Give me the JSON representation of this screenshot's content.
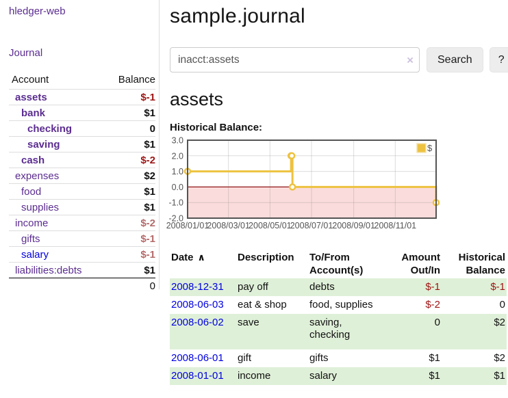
{
  "app": {
    "brand": "hledger-web",
    "nav_journal": "Journal"
  },
  "sidebar": {
    "table_headers": {
      "account": "Account",
      "balance": "Balance"
    },
    "accounts": [
      {
        "name": "assets",
        "balance": "$-1",
        "level": 1,
        "bold": true,
        "balance_class": "neg-strong",
        "link": "purple"
      },
      {
        "name": "bank",
        "balance": "$1",
        "level": 2,
        "bold": true,
        "balance_class": "",
        "link": "purple"
      },
      {
        "name": "checking",
        "balance": "0",
        "level": 3,
        "bold": true,
        "balance_class": "",
        "link": "purple"
      },
      {
        "name": "saving",
        "balance": "$1",
        "level": 3,
        "bold": true,
        "balance_class": "",
        "link": "purple"
      },
      {
        "name": "cash",
        "balance": "$-2",
        "level": 2,
        "bold": true,
        "balance_class": "neg-strong",
        "link": "purple"
      },
      {
        "name": "expenses",
        "balance": "$2",
        "level": 1,
        "bold": false,
        "balance_class": "",
        "link": "purple"
      },
      {
        "name": "food",
        "balance": "$1",
        "level": 2,
        "bold": false,
        "balance_class": "",
        "link": "purple"
      },
      {
        "name": "supplies",
        "balance": "$1",
        "level": 2,
        "bold": false,
        "balance_class": "",
        "link": "purple"
      },
      {
        "name": "income",
        "balance": "$-2",
        "level": 1,
        "bold": false,
        "balance_class": "neg-muted",
        "link": "purple"
      },
      {
        "name": "gifts",
        "balance": "$-1",
        "level": 2,
        "bold": false,
        "balance_class": "neg-muted",
        "link": "purple"
      },
      {
        "name": "salary",
        "balance": "$-1",
        "level": 2,
        "bold": false,
        "balance_class": "neg-muted",
        "link": "blue"
      },
      {
        "name": "liabilities:debts",
        "balance": "$1",
        "level": 1,
        "bold": false,
        "balance_class": "",
        "link": "purple"
      }
    ],
    "total": "0"
  },
  "header": {
    "title": "sample.journal"
  },
  "search": {
    "value": "inacct:assets",
    "clear_icon": "×",
    "button_label": "Search",
    "help_label": "?"
  },
  "account_page": {
    "heading": "assets",
    "chart_label": "Historical Balance:"
  },
  "chart_data": {
    "type": "line",
    "style": "steps",
    "title": "Historical Balance",
    "series": [
      {
        "name": "$",
        "color": "#edc240",
        "points": [
          {
            "x": "2008-01-01",
            "y": 1
          },
          {
            "x": "2008-06-01",
            "y": 2
          },
          {
            "x": "2008-06-02",
            "y": 2
          },
          {
            "x": "2008-06-03",
            "y": 0
          },
          {
            "x": "2008-12-31",
            "y": -1
          }
        ]
      }
    ],
    "x_ticks": [
      "2008/01/01",
      "2008/03/01",
      "2008/05/01",
      "2008/07/01",
      "2008/09/01",
      "2008/11/01"
    ],
    "y_ticks": [
      3.0,
      2.0,
      1.0,
      0.0,
      -1.0,
      -2.0
    ],
    "xlim": [
      "2008-01-01",
      "2008-12-31"
    ],
    "ylim": [
      -2.0,
      3.0
    ],
    "grid": true,
    "legend": {
      "label": "$",
      "position": "top-right"
    },
    "negative_region_fill": "#fbdcdc",
    "zero_line_color": "#8f1414",
    "border_color": "#545454"
  },
  "register": {
    "columns": [
      {
        "label": "Date",
        "align": "left"
      },
      {
        "label": "Description",
        "align": "left"
      },
      {
        "label": "To/From Account(s)",
        "align": "left"
      },
      {
        "label": "Amount Out/In",
        "align": "right"
      },
      {
        "label": "Historical Balance",
        "align": "right"
      }
    ],
    "sort_icon": "∧",
    "rows": [
      {
        "date": "2008-12-31",
        "description": "pay off",
        "accounts": "debts",
        "amount": "$-1",
        "amount_negative": true,
        "balance": "$-1",
        "balance_negative": true,
        "highlighted": true
      },
      {
        "date": "2008-06-03",
        "description": "eat & shop",
        "accounts": "food, supplies",
        "amount": "$-2",
        "amount_negative": true,
        "balance": "0",
        "balance_negative": false,
        "highlighted": false
      },
      {
        "date": "2008-06-02",
        "description": "save",
        "accounts": "saving, checking",
        "amount": "0",
        "amount_negative": false,
        "balance": "$2",
        "balance_negative": false,
        "highlighted": true
      },
      {
        "date": "2008-06-01",
        "description": "gift",
        "accounts": "gifts",
        "amount": "$1",
        "amount_negative": false,
        "balance": "$2",
        "balance_negative": false,
        "highlighted": false
      },
      {
        "date": "2008-01-01",
        "description": "income",
        "accounts": "salary",
        "amount": "$1",
        "amount_negative": false,
        "balance": "$1",
        "balance_negative": false,
        "highlighted": true
      }
    ]
  },
  "colors": {
    "link_purple": "#5b2d90",
    "link_blue": "#0000e0",
    "negative_strong": "#9e1414",
    "negative_muted": "#b46a6a",
    "row_highlight_green": "#dff0d8",
    "chart_series_gold": "#edc240",
    "chart_negative_fill": "#fbdcdc",
    "chart_zero_line": "#8f1414"
  }
}
